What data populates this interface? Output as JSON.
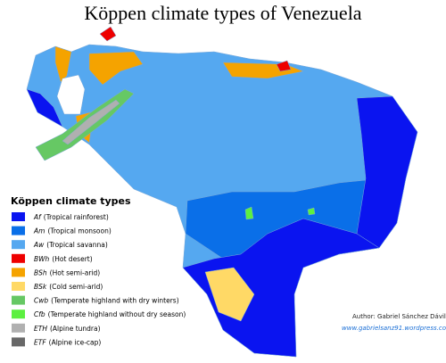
{
  "title": "Köppen climate types of Venezuela",
  "legend": {
    "title": "Köppen climate types",
    "items": [
      {
        "code": "Af",
        "label": "(Tropical rainforest)",
        "color": "#0a14f0"
      },
      {
        "code": "Am",
        "label": "(Tropical monsoon)",
        "color": "#0a6fe8"
      },
      {
        "code": "Aw",
        "label": "(Tropical savanna)",
        "color": "#55a8f0"
      },
      {
        "code": "BWh",
        "label": "(Hot desert)",
        "color": "#ee0000"
      },
      {
        "code": "BSh",
        "label": "(Hot semi-arid)",
        "color": "#f5a300"
      },
      {
        "code": "BSk",
        "label": "(Cold semi-arid)",
        "color": "#ffd966"
      },
      {
        "code": "Cwb",
        "label": "(Temperate highland with dry winters)",
        "color": "#66c864"
      },
      {
        "code": "Cfb",
        "label": "(Temperate highland without dry season)",
        "color": "#5cf040"
      },
      {
        "code": "ETH",
        "label": "(Alpine tundra)",
        "color": "#b0b0b0"
      },
      {
        "code": "ETF",
        "label": "(Alpine ice-cap)",
        "color": "#686868"
      }
    ]
  },
  "author": "Author: Gabriel Sánchez Dávila",
  "website": "www.gabrielsanz91.wordpress.com"
}
